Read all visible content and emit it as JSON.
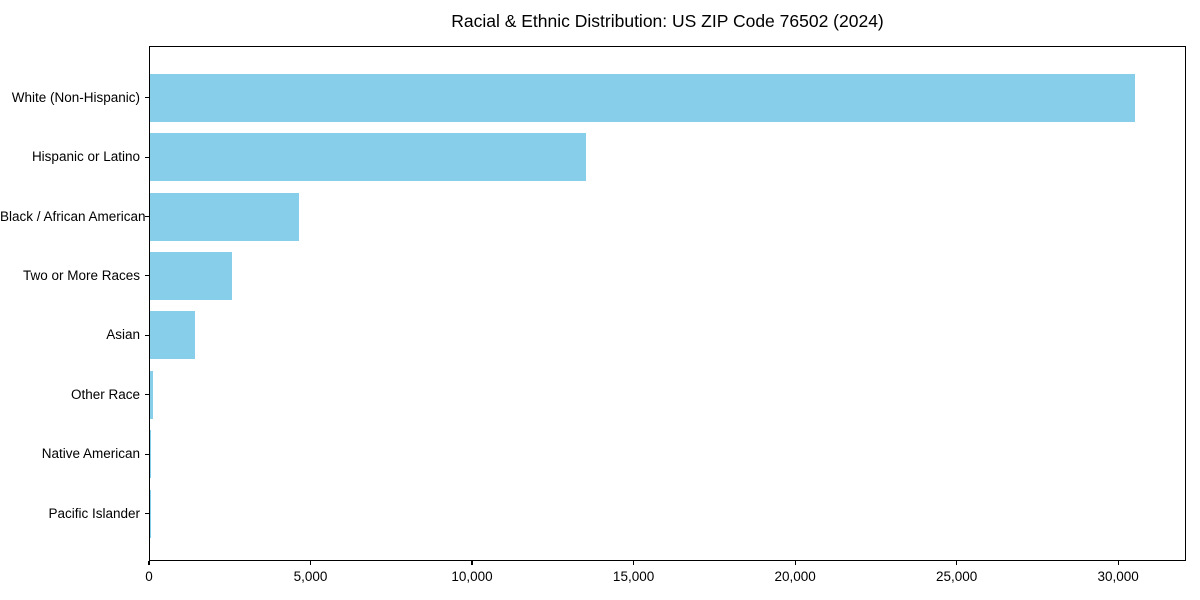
{
  "chart_data": {
    "type": "bar",
    "orientation": "horizontal",
    "title": "Racial & Ethnic Distribution: US ZIP Code 76502 (2024)",
    "categories": [
      "White (Non-Hispanic)",
      "Hispanic or Latino",
      "Black / African American",
      "Two or More Races",
      "Asian",
      "Other Race",
      "Native American",
      "Pacific Islander"
    ],
    "values": [
      30500,
      13500,
      4600,
      2550,
      1400,
      100,
      30,
      10
    ],
    "xlabel": "",
    "ylabel": "",
    "xlim": [
      0,
      32100
    ],
    "xticks": [
      0,
      5000,
      10000,
      15000,
      20000,
      25000,
      30000
    ],
    "xtick_labels": [
      "0",
      "5,000",
      "10,000",
      "15,000",
      "20,000",
      "25,000",
      "30,000"
    ],
    "bar_color": "#87CEEB",
    "text_color": "#000000",
    "grid": false,
    "legend": null,
    "frame": "full-box"
  }
}
